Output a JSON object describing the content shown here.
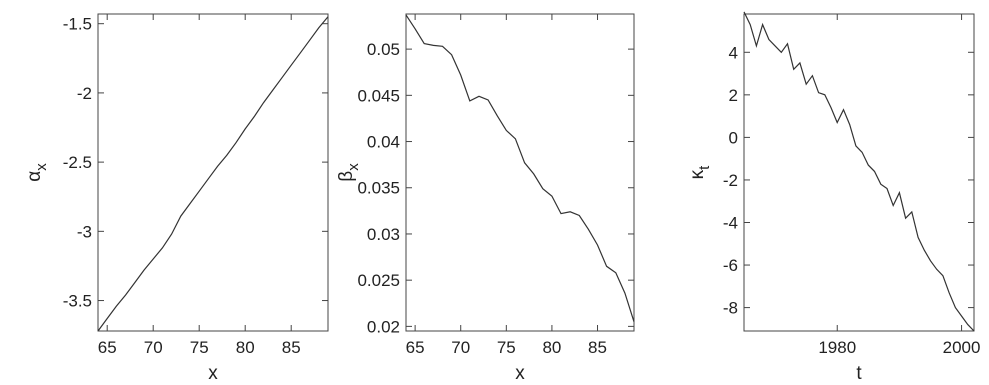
{
  "chart_data": [
    {
      "type": "line",
      "xlabel": "x",
      "ylabel": "α",
      "ylabel_sub": "x",
      "xlim": [
        64,
        89
      ],
      "ylim": [
        -3.72,
        -1.43
      ],
      "xticks": [
        65,
        70,
        75,
        80,
        85
      ],
      "xtick_labels": [
        "65",
        "70",
        "75",
        "80",
        "85"
      ],
      "yticks": [
        -3.5,
        -3,
        -2.5,
        -2,
        -1.5
      ],
      "ytick_labels": [
        "-3.5",
        "-3",
        "-2.5",
        "-2",
        "-1.5"
      ],
      "grid": false,
      "x": [
        64,
        65,
        66,
        67,
        68,
        69,
        70,
        71,
        72,
        73,
        74,
        75,
        76,
        77,
        78,
        79,
        80,
        81,
        82,
        83,
        84,
        85,
        86,
        87,
        88,
        89
      ],
      "y": [
        -3.72,
        -3.63,
        -3.54,
        -3.46,
        -3.37,
        -3.28,
        -3.2,
        -3.12,
        -3.02,
        -2.89,
        -2.8,
        -2.71,
        -2.62,
        -2.53,
        -2.45,
        -2.36,
        -2.26,
        -2.17,
        -2.07,
        -1.98,
        -1.89,
        -1.8,
        -1.71,
        -1.62,
        -1.53,
        -1.45
      ],
      "line_color": "#333333"
    },
    {
      "type": "line",
      "xlabel": "x",
      "ylabel": "β",
      "ylabel_sub": "x",
      "xlim": [
        64,
        89
      ],
      "ylim": [
        0.0195,
        0.0538
      ],
      "xticks": [
        65,
        70,
        75,
        80,
        85
      ],
      "xtick_labels": [
        "65",
        "70",
        "75",
        "80",
        "85"
      ],
      "yticks": [
        0.02,
        0.025,
        0.03,
        0.035,
        0.04,
        0.045,
        0.05
      ],
      "ytick_labels": [
        "0.02",
        "0.025",
        "0.03",
        "0.035",
        "0.04",
        "0.045",
        "0.05"
      ],
      "grid": false,
      "x": [
        64,
        65,
        66,
        67,
        68,
        69,
        70,
        71,
        72,
        73,
        74,
        75,
        76,
        77,
        78,
        79,
        80,
        81,
        82,
        83,
        84,
        85,
        86,
        87,
        88,
        89
      ],
      "y": [
        0.0537,
        0.0522,
        0.0506,
        0.0504,
        0.0503,
        0.0494,
        0.0472,
        0.0444,
        0.0449,
        0.0445,
        0.0428,
        0.0412,
        0.0403,
        0.0377,
        0.0365,
        0.0349,
        0.0341,
        0.0322,
        0.0324,
        0.032,
        0.0305,
        0.0288,
        0.0265,
        0.0258,
        0.0236,
        0.0205
      ],
      "line_color": "#333333"
    },
    {
      "type": "line",
      "xlabel": "t",
      "ylabel": "κ",
      "ylabel_sub": "t",
      "xlim": [
        1965,
        2002
      ],
      "ylim": [
        -9.1,
        5.8
      ],
      "xticks": [
        1980,
        2000
      ],
      "xtick_labels": [
        "1980",
        "2000"
      ],
      "yticks": [
        -8,
        -6,
        -4,
        -2,
        0,
        2,
        4
      ],
      "ytick_labels": [
        "-8",
        "-6",
        "-4",
        "-2",
        "0",
        "2",
        "4"
      ],
      "grid": false,
      "x": [
        1965,
        1966,
        1967,
        1968,
        1969,
        1970,
        1971,
        1972,
        1973,
        1974,
        1975,
        1976,
        1977,
        1978,
        1979,
        1980,
        1981,
        1982,
        1983,
        1984,
        1985,
        1986,
        1987,
        1988,
        1989,
        1990,
        1991,
        1992,
        1993,
        1994,
        1995,
        1996,
        1997,
        1998,
        1999,
        2000,
        2001,
        2002
      ],
      "y": [
        5.9,
        5.3,
        4.3,
        5.3,
        4.6,
        4.3,
        4.0,
        4.4,
        3.2,
        3.5,
        2.5,
        2.9,
        2.1,
        2.0,
        1.4,
        0.7,
        1.3,
        0.6,
        -0.4,
        -0.7,
        -1.3,
        -1.6,
        -2.2,
        -2.4,
        -3.2,
        -2.6,
        -3.8,
        -3.5,
        -4.7,
        -5.3,
        -5.8,
        -6.2,
        -6.5,
        -7.3,
        -8.0,
        -8.4,
        -8.8,
        -9.1
      ],
      "line_color": "#333333"
    }
  ]
}
